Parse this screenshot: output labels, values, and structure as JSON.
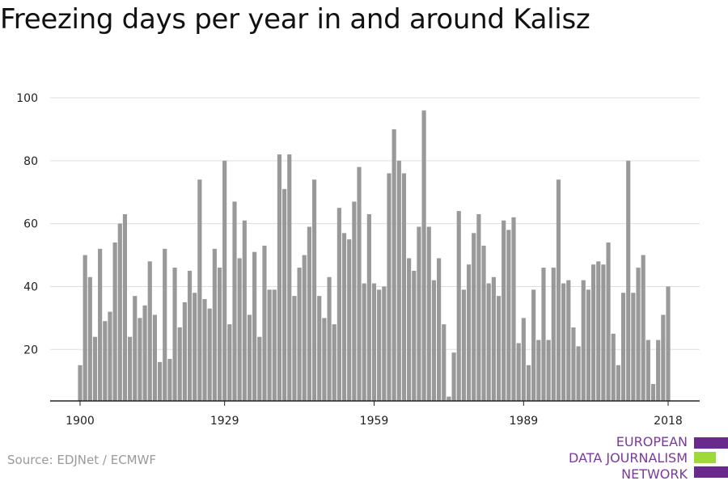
{
  "chart_data": {
    "type": "bar",
    "title": "Freezing days per year in and around Kalisz",
    "xlabel": "",
    "ylabel": "",
    "x_tick_labels": [
      "1900",
      "1929",
      "1959",
      "1989",
      "2018"
    ],
    "y_tick_labels": [
      "20",
      "40",
      "60",
      "80",
      "100"
    ],
    "ylim": [
      4.5,
      100
    ],
    "grid": true,
    "legend": "none",
    "bar_color": "#999999",
    "years": [
      1900,
      1901,
      1902,
      1903,
      1904,
      1905,
      1906,
      1907,
      1908,
      1909,
      1910,
      1911,
      1912,
      1913,
      1914,
      1915,
      1916,
      1917,
      1918,
      1919,
      1920,
      1921,
      1922,
      1923,
      1924,
      1925,
      1926,
      1927,
      1928,
      1929,
      1930,
      1931,
      1932,
      1933,
      1934,
      1935,
      1936,
      1937,
      1938,
      1939,
      1940,
      1941,
      1942,
      1943,
      1944,
      1945,
      1946,
      1947,
      1948,
      1949,
      1950,
      1951,
      1952,
      1953,
      1954,
      1955,
      1956,
      1957,
      1958,
      1959,
      1960,
      1961,
      1962,
      1963,
      1964,
      1965,
      1966,
      1967,
      1968,
      1969,
      1970,
      1971,
      1972,
      1973,
      1974,
      1975,
      1976,
      1977,
      1978,
      1979,
      1980,
      1981,
      1982,
      1983,
      1984,
      1985,
      1986,
      1987,
      1988,
      1989,
      1990,
      1991,
      1992,
      1993,
      1994,
      1995,
      1996,
      1997,
      1998,
      1999,
      2000,
      2001,
      2002,
      2003,
      2004,
      2005,
      2006,
      2007,
      2008,
      2009,
      2010,
      2011,
      2012,
      2013,
      2014,
      2015,
      2016,
      2017,
      2018
    ],
    "values": [
      15,
      50,
      43,
      24,
      52,
      29,
      32,
      54,
      60,
      63,
      24,
      37,
      30,
      34,
      48,
      31,
      16,
      52,
      17,
      46,
      27,
      35,
      45,
      38,
      74,
      36,
      33,
      52,
      46,
      80,
      28,
      67,
      49,
      61,
      31,
      51,
      24,
      53,
      39,
      39,
      82,
      71,
      82,
      37,
      46,
      50,
      59,
      74,
      37,
      30,
      43,
      28,
      65,
      57,
      55,
      67,
      78,
      41,
      63,
      41,
      39,
      40,
      76,
      90,
      80,
      76,
      49,
      45,
      59,
      96,
      59,
      42,
      49,
      28,
      5,
      19,
      64,
      39,
      47,
      57,
      63,
      53,
      41,
      43,
      37,
      61,
      58,
      62,
      22,
      30,
      15,
      39,
      23,
      46,
      23,
      46,
      74,
      41,
      42,
      27,
      21,
      42,
      39,
      47,
      48,
      47,
      54,
      25,
      15,
      38,
      80,
      38,
      46,
      50,
      23,
      9,
      23,
      31,
      40
    ]
  },
  "source": "Source: EDJNet / ECMWF",
  "logo": {
    "lines": [
      "EUROPEAN",
      "DATA JOURNALISM",
      "NETWORK"
    ],
    "colors": [
      "#6a2a8c",
      "#9ed93a",
      "#6a2a8c"
    ]
  }
}
